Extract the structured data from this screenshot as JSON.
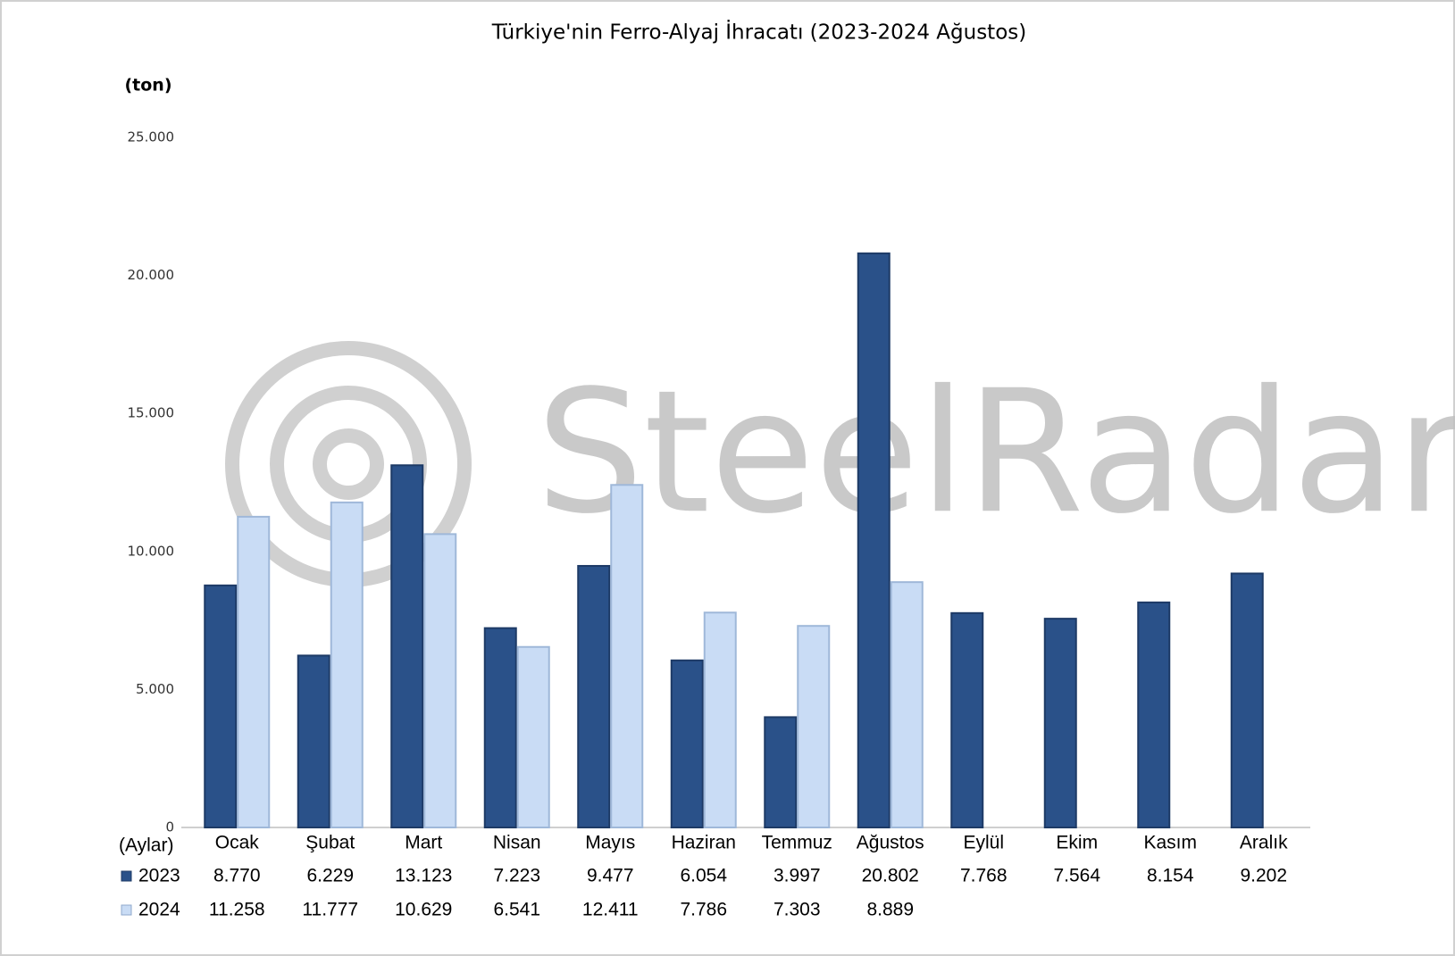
{
  "chart_data": {
    "type": "bar",
    "title": "Türkiye'nin Ferro-Alyaj İhracatı (2023-2024 Ağustos)",
    "y_label": "(ton)",
    "x_label": "(Aylar)",
    "watermark": "SteelRadar",
    "categories": [
      "Ocak",
      "Şubat",
      "Mart",
      "Nisan",
      "Mayıs",
      "Haziran",
      "Temmuz",
      "Ağustos",
      "Eylül",
      "Ekim",
      "Kasım",
      "Aralık"
    ],
    "series": [
      {
        "name": "2023",
        "color": "#2a5189",
        "values": [
          8770,
          6229,
          13123,
          7223,
          9477,
          6054,
          3997,
          20802,
          7768,
          7564,
          8154,
          9202
        ],
        "value_labels": [
          "8.770",
          "6.229",
          "13.123",
          "7.223",
          "9.477",
          "6.054",
          "3.997",
          "20.802",
          "7.768",
          "7.564",
          "8.154",
          "9.202"
        ]
      },
      {
        "name": "2024",
        "color": "#c9dcf5",
        "values": [
          11258,
          11777,
          10629,
          6541,
          12411,
          7786,
          7303,
          8889,
          null,
          null,
          null,
          null
        ],
        "value_labels": [
          "11.258",
          "11.777",
          "10.629",
          "6.541",
          "12.411",
          "7.786",
          "7.303",
          "8.889",
          null,
          null,
          null,
          null
        ]
      }
    ],
    "ylim": [
      0,
      25000
    ],
    "yticks": [
      0,
      {
        "value": 5000,
        "label": "5.000"
      },
      {
        "value": 10000,
        "label": "10.000"
      },
      {
        "value": 15000,
        "label": "15.000"
      },
      {
        "value": 20000,
        "label": "20.000"
      },
      {
        "value": 25000,
        "label": "25.000"
      }
    ],
    "grid": false
  }
}
